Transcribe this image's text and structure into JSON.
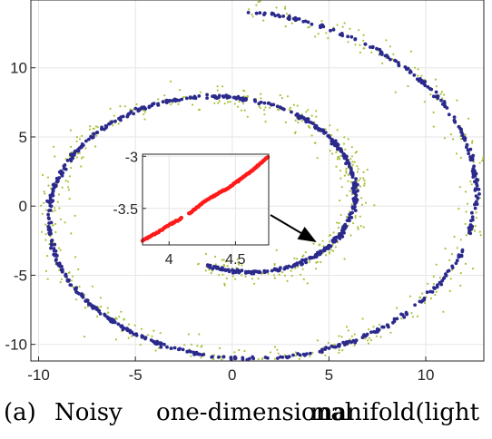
{
  "chart_data": [
    {
      "type": "scatter",
      "title": "",
      "xlabel": "",
      "ylabel": "",
      "xlim": [
        -10.4,
        13.0
      ],
      "ylim": [
        -11.2,
        14.9
      ],
      "xticks": [
        "-10",
        "-5",
        "0",
        "5",
        "10"
      ],
      "xtick_values": [
        -10,
        -5,
        0,
        5,
        10
      ],
      "yticks": [
        "10",
        "5",
        "0",
        "-5",
        "-10"
      ],
      "ytick_values": [
        10,
        5,
        0,
        -5,
        -10
      ],
      "grid": true,
      "series": [
        {
          "color": "#a8c23a",
          "marker": "dot",
          "spiral": {
            "a": 1.0,
            "theta_start": 4.4,
            "theta_end": 14.1,
            "count": 700,
            "noise": 0.45
          }
        },
        {
          "color": "#2b2a8c",
          "marker": "dot",
          "spiral": {
            "a": 1.0,
            "theta_start": 4.4,
            "theta_end": 14.1,
            "count": 950,
            "noise": 0.06
          }
        }
      ]
    },
    {
      "type": "scatter",
      "role": "inset",
      "xlim": [
        3.8,
        4.75
      ],
      "ylim": [
        -3.85,
        -2.98
      ],
      "xticks": [
        "4",
        "4.5"
      ],
      "xtick_values": [
        4,
        4.5
      ],
      "yticks": [
        "-3",
        "-3.5"
      ],
      "ytick_values": [
        -3,
        -3.5
      ],
      "grid": true,
      "series": [
        {
          "color": "#ff1a1a",
          "x": [
            3.8,
            3.9,
            4.0,
            4.1,
            4.15,
            4.25,
            4.35,
            4.45,
            4.55,
            4.65,
            4.75
          ],
          "y": [
            -3.81,
            -3.74,
            -3.66,
            -3.59,
            -3.55,
            -3.45,
            -3.37,
            -3.3,
            -3.21,
            -3.11,
            -3.0
          ]
        }
      ],
      "callout": {
        "from": [
          4.75,
          -3.55
        ],
        "to": [
          4.3,
          -3.55
        ],
        "color": "#000000"
      }
    }
  ],
  "caption": {
    "label": "(a)",
    "words": [
      "Noisy",
      "one-dimensional",
      "manifold(light"
    ]
  }
}
